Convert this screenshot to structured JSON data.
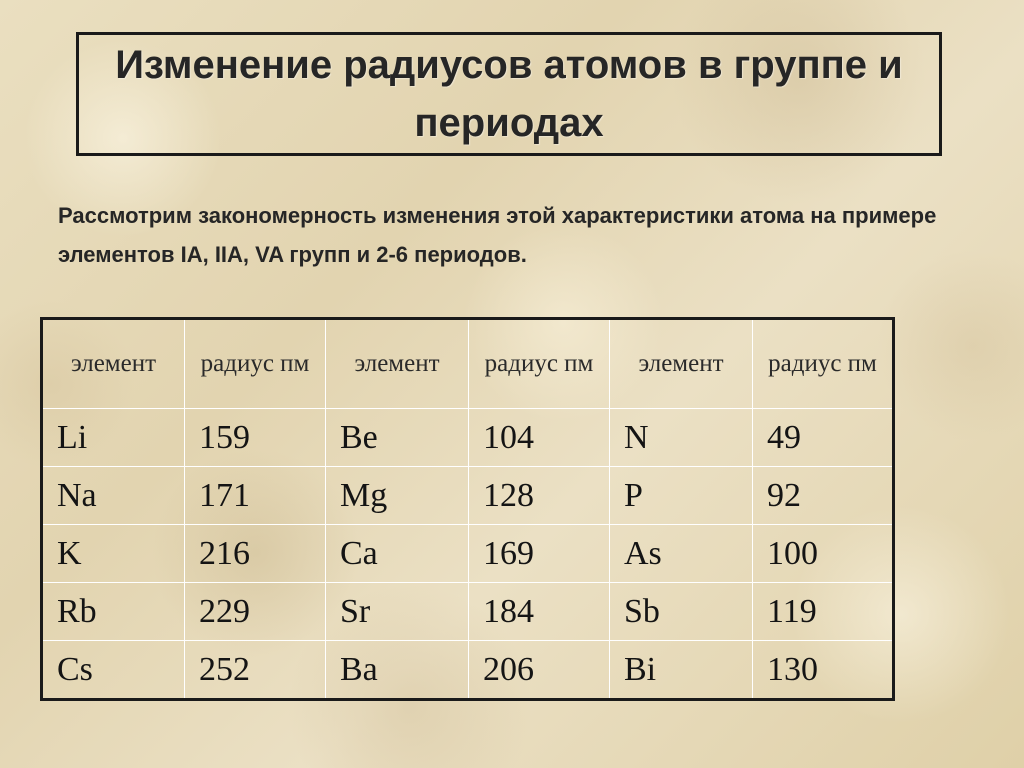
{
  "slide": {
    "title": "Изменение радиусов атомов в группе и периодах",
    "intro": "Рассмотрим закономерность изменения этой характеристики атома на примере элементов IA, IIA, VA групп и 2-6 периодов."
  },
  "table": {
    "headers": [
      "элемент",
      "радиус пм",
      "элемент",
      "радиус пм",
      "элемент",
      "радиус пм"
    ],
    "rows": [
      [
        "Li",
        "159",
        "Be",
        "104",
        "N",
        "49"
      ],
      [
        "Na",
        "171",
        "Mg",
        "128",
        "P",
        "92"
      ],
      [
        "K",
        "216",
        "Ca",
        "169",
        "As",
        "100"
      ],
      [
        "Rb",
        "229",
        "Sr",
        "184",
        "Sb",
        "119"
      ],
      [
        "Cs",
        "252",
        "Ba",
        "206",
        "Bi",
        "130"
      ]
    ]
  }
}
